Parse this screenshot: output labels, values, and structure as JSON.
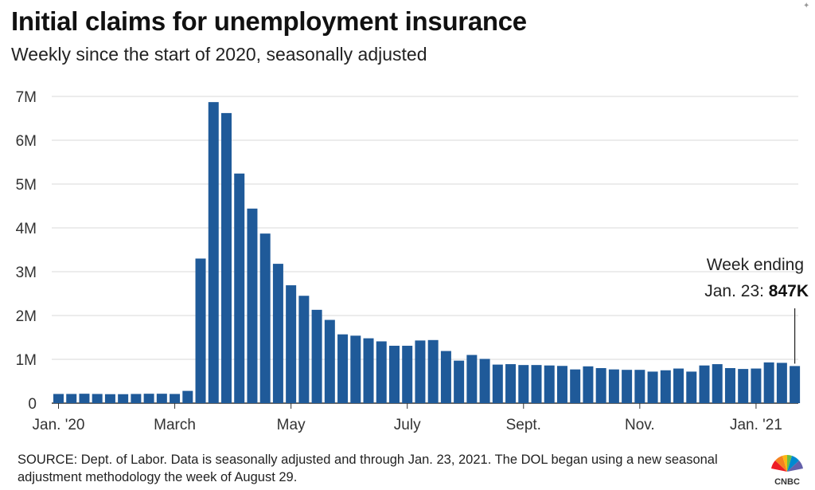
{
  "title": "Initial claims for unemployment insurance",
  "subtitle": "Weekly since the start of 2020, seasonally adjusted",
  "annotation": {
    "line1": "Week ending",
    "line2_prefix": "Jan. 23: ",
    "line2_value": "847K"
  },
  "source": "SOURCE: Dept. of Labor. Data is seasonally adjusted and through Jan. 23, 2021. The DOL began using a new seasonal adjustment methodology the week of August 29.",
  "logo_text": "CNBC",
  "colors": {
    "bar": "#1f5a99",
    "grid": "#d9d9d9",
    "axis": "#333333"
  },
  "chart_data": {
    "type": "bar",
    "title": "Initial claims for unemployment insurance",
    "subtitle": "Weekly since the start of 2020, seasonally adjusted",
    "xlabel": "",
    "ylabel": "",
    "ylim": [
      0,
      7000000
    ],
    "y_ticks": [
      {
        "value": 0,
        "label": "0"
      },
      {
        "value": 1000000,
        "label": "1M"
      },
      {
        "value": 2000000,
        "label": "2M"
      },
      {
        "value": 3000000,
        "label": "3M"
      },
      {
        "value": 4000000,
        "label": "4M"
      },
      {
        "value": 5000000,
        "label": "5M"
      },
      {
        "value": 6000000,
        "label": "6M"
      },
      {
        "value": 7000000,
        "label": "7M"
      }
    ],
    "x_ticks": [
      {
        "index": 0,
        "label": "Jan. '20"
      },
      {
        "index": 9,
        "label": "March"
      },
      {
        "index": 18,
        "label": "May"
      },
      {
        "index": 27,
        "label": "July"
      },
      {
        "index": 36,
        "label": "Sept."
      },
      {
        "index": 45,
        "label": "Nov."
      },
      {
        "index": 54,
        "label": "Jan. '21"
      }
    ],
    "grid": true,
    "values": [
      210000,
      210000,
      215000,
      210000,
      205000,
      205000,
      210000,
      215000,
      215000,
      210000,
      280000,
      3300000,
      6870000,
      6620000,
      5240000,
      4440000,
      3870000,
      3180000,
      2690000,
      2450000,
      2130000,
      1900000,
      1570000,
      1540000,
      1480000,
      1410000,
      1310000,
      1310000,
      1430000,
      1440000,
      1190000,
      970000,
      1100000,
      1010000,
      880000,
      890000,
      870000,
      870000,
      860000,
      850000,
      770000,
      840000,
      800000,
      770000,
      760000,
      760000,
      720000,
      750000,
      790000,
      720000,
      860000,
      890000,
      800000,
      780000,
      790000,
      930000,
      920000,
      847000
    ]
  }
}
